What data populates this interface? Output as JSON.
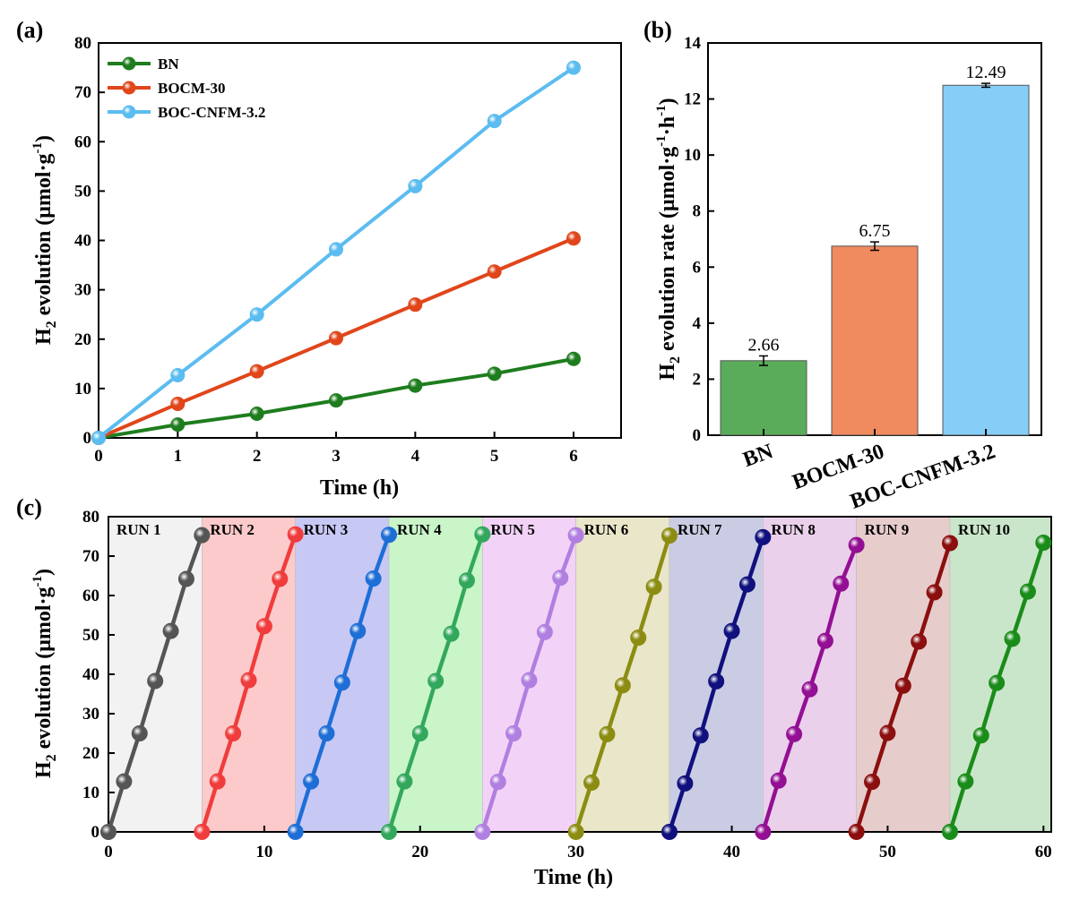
{
  "chart_data": [
    {
      "panel": "(a)",
      "type": "line",
      "xlabel": "Time (h)",
      "ylabel_main": "H",
      "ylabel_sub": "2",
      "ylabel_rest": " evolution (μmol·g",
      "ylabel_sup": "-1",
      "ylabel_end": ")",
      "xlim": [
        0,
        6.6
      ],
      "ylim": [
        0,
        80
      ],
      "xticks": [
        0,
        1,
        2,
        3,
        4,
        5,
        6
      ],
      "yticks": [
        0,
        10,
        20,
        30,
        40,
        50,
        60,
        70,
        80
      ],
      "legend_position": "top-left",
      "x": [
        0,
        1,
        2,
        3,
        4,
        5,
        6
      ],
      "series": [
        {
          "name": "BN",
          "color": "#1e7d1e",
          "values": [
            0,
            2.7,
            4.9,
            7.6,
            10.6,
            13.0,
            16.0
          ]
        },
        {
          "name": "BOCM-30",
          "color": "#e0461a",
          "values": [
            0,
            6.9,
            13.5,
            20.2,
            27.0,
            33.7,
            40.4
          ]
        },
        {
          "name": "BOC-CNFM-3.2",
          "color": "#5bbcf0",
          "values": [
            0,
            12.7,
            25.0,
            38.2,
            51.0,
            64.2,
            75.0
          ]
        }
      ]
    },
    {
      "panel": "(b)",
      "type": "bar",
      "ylabel_main": "H",
      "ylabel_sub": "2",
      "ylabel_rest": " evolution rate (μmol·g",
      "ylabel_sup1": "-1",
      "ylabel_mid": "·h",
      "ylabel_sup2": "-1",
      "ylabel_end": ")",
      "ylim": [
        0,
        14
      ],
      "yticks": [
        0,
        2,
        4,
        6,
        8,
        10,
        12,
        14
      ],
      "categories": [
        "BN",
        "BOCM-30",
        "BOC-CNFM-3.2"
      ],
      "values": [
        2.66,
        6.75,
        12.49
      ],
      "value_labels": [
        "2.66",
        "6.75",
        "12.49"
      ],
      "errors": [
        0.17,
        0.15,
        0.07
      ],
      "colors": [
        "#5aac5a",
        "#f08a5f",
        "#86cdf7"
      ]
    },
    {
      "panel": "(c)",
      "type": "line",
      "xlabel": "Time (h)",
      "ylabel_main": "H",
      "ylabel_sub": "2",
      "ylabel_rest": " evolution (μmol·g",
      "ylabel_sup": "-1",
      "ylabel_end": ")",
      "xlim": [
        0,
        60.5
      ],
      "ylim": [
        0,
        80
      ],
      "xticks": [
        0,
        10,
        20,
        30,
        40,
        50,
        60
      ],
      "yticks": [
        0,
        10,
        20,
        30,
        40,
        50,
        60,
        70,
        80
      ],
      "run_hours": 6,
      "runs": [
        {
          "name": "RUN 1",
          "color": "#555555",
          "bg": "#f2f2f2",
          "values": [
            0,
            12.8,
            25.0,
            38.3,
            51.0,
            64.2,
            75.3
          ]
        },
        {
          "name": "RUN 2",
          "color": "#f03c3c",
          "bg": "#fccaca",
          "values": [
            0,
            12.8,
            25.0,
            38.5,
            52.2,
            64.2,
            75.5
          ]
        },
        {
          "name": "RUN 3",
          "color": "#1e6ed6",
          "bg": "#c8c8f5",
          "values": [
            0,
            12.8,
            25.0,
            37.9,
            51.0,
            64.3,
            75.4
          ]
        },
        {
          "name": "RUN 4",
          "color": "#33a85c",
          "bg": "#c9f5c9",
          "values": [
            0,
            12.8,
            25.0,
            38.3,
            50.3,
            63.8,
            75.5
          ]
        },
        {
          "name": "RUN 5",
          "color": "#b07fe0",
          "bg": "#f3d2f7",
          "values": [
            0,
            12.7,
            25.0,
            38.5,
            50.7,
            64.5,
            75.3
          ]
        },
        {
          "name": "RUN 6",
          "color": "#8c8c12",
          "bg": "#e9e6c9",
          "values": [
            0,
            12.5,
            24.8,
            37.2,
            49.3,
            62.2,
            75.2
          ]
        },
        {
          "name": "RUN 7",
          "color": "#10107e",
          "bg": "#cacce3",
          "values": [
            0,
            12.3,
            24.5,
            38.2,
            51.0,
            62.8,
            74.8
          ]
        },
        {
          "name": "RUN 8",
          "color": "#930f93",
          "bg": "#ead0ea",
          "values": [
            0,
            13.0,
            24.8,
            36.2,
            48.5,
            63.0,
            72.8
          ]
        },
        {
          "name": "RUN 9",
          "color": "#8b0f0f",
          "bg": "#e7cccc",
          "values": [
            0,
            12.7,
            25.1,
            37.1,
            48.3,
            60.8,
            73.3
          ]
        },
        {
          "name": "RUN 10",
          "color": "#1a8c1a",
          "bg": "#cae6ca",
          "values": [
            0,
            12.8,
            24.5,
            37.8,
            49.0,
            61.0,
            73.4
          ]
        }
      ]
    }
  ]
}
